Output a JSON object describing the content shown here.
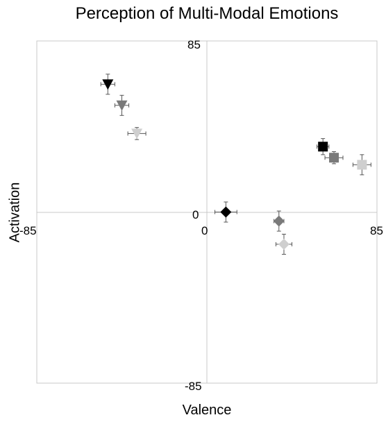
{
  "chart_data": {
    "type": "scatter",
    "title": "Perception of Multi-Modal Emotions",
    "xlabel": "Valence",
    "ylabel": "Activation",
    "xlim": [
      -85,
      85
    ],
    "ylim": [
      -85,
      85
    ],
    "x_ticks": [
      "-85",
      "0",
      "85"
    ],
    "y_ticks": [
      "-85",
      "0",
      "85"
    ],
    "grid": false,
    "legend": "none",
    "points": [
      {
        "marker": "triangle",
        "color": "#000000",
        "x": -49.5,
        "y": 63.5,
        "xerr": 3.5,
        "yerr": 5
      },
      {
        "marker": "triangle",
        "color": "#7a7a7a",
        "x": -42.5,
        "y": 53,
        "xerr": 3.5,
        "yerr": 5
      },
      {
        "marker": "triangle",
        "color": "#cfcfcf",
        "x": -35,
        "y": 39,
        "xerr": 4.5,
        "yerr": 3
      },
      {
        "marker": "square",
        "color": "#000000",
        "x": 58,
        "y": 32.5,
        "xerr": 3,
        "yerr": 4
      },
      {
        "marker": "square",
        "color": "#7a7a7a",
        "x": 63.5,
        "y": 27,
        "xerr": 4.5,
        "yerr": 3
      },
      {
        "marker": "square",
        "color": "#cfcfcf",
        "x": 77.5,
        "y": 23.5,
        "xerr": 4.5,
        "yerr": 5
      },
      {
        "marker": "diamond",
        "color": "#000000",
        "x": 9.5,
        "y": 0,
        "xerr": 5.5,
        "yerr": 5
      },
      {
        "marker": "diamond",
        "color": "#7a7a7a",
        "x": 36,
        "y": -4.5,
        "xerr": 2.5,
        "yerr": 5
      },
      {
        "marker": "diamond",
        "color": "#cfcfcf",
        "x": 38.5,
        "y": -16,
        "xerr": 4,
        "yerr": 5
      }
    ]
  }
}
